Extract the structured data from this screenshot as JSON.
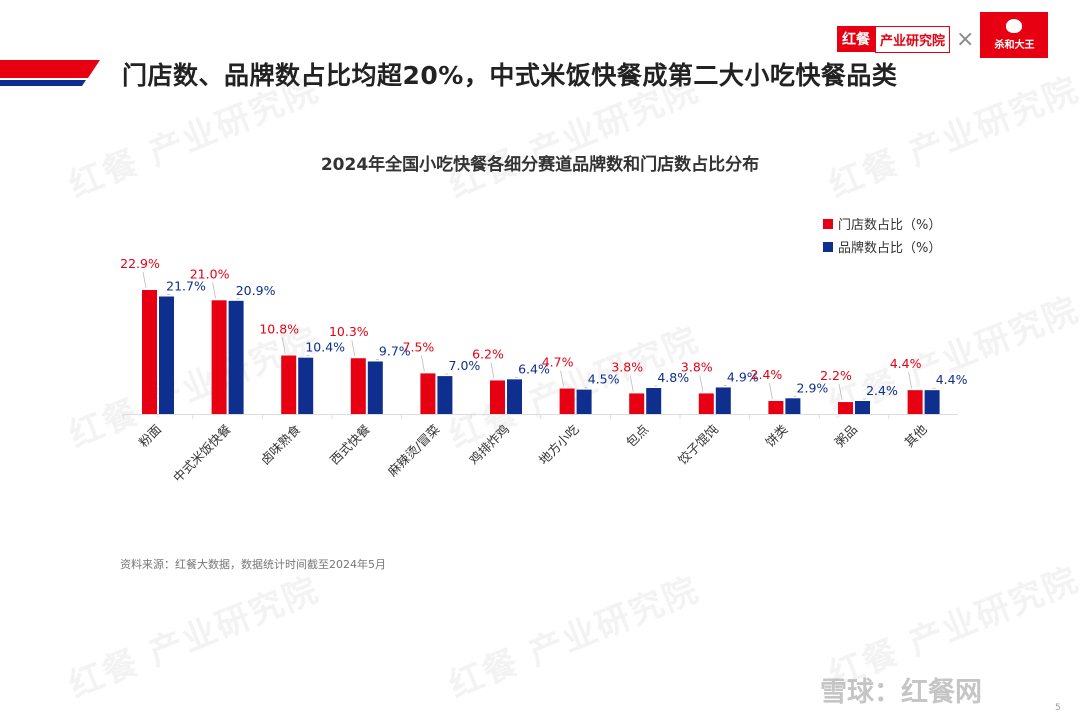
{
  "header": {
    "title": "门店数、品牌数占比均超20%，中式米饭快餐成第二大小吃快餐品类",
    "logo_left_a": "红餐",
    "logo_left_b": "产业研究院",
    "logo_times": "×",
    "logo_right": "杀和大王"
  },
  "watermark": "红餐 产业研究院",
  "colors": {
    "store": "#e60012",
    "brand": "#0f2f8f",
    "accent": "#e60012"
  },
  "chart_data": {
    "type": "bar",
    "title": "2024年全国小吃快餐各细分赛道品牌数和门店数占比分布",
    "categories": [
      "粉面",
      "中式米饭快餐",
      "卤味熟食",
      "西式快餐",
      "麻辣烫/冒菜",
      "鸡排炸鸡",
      "地方小吃",
      "包点",
      "饺子馄饨",
      "饼类",
      "粥品",
      "其他"
    ],
    "series": [
      {
        "name": "门店数占比（%）",
        "values": [
          22.9,
          21.0,
          10.8,
          10.3,
          7.5,
          6.2,
          4.7,
          3.8,
          3.8,
          2.4,
          2.2,
          4.4
        ]
      },
      {
        "name": "品牌数占比（%）",
        "values": [
          21.7,
          20.9,
          10.4,
          9.7,
          7.0,
          6.4,
          4.5,
          4.8,
          4.9,
          2.9,
          2.4,
          4.4
        ]
      }
    ],
    "ylim": [
      0,
      25
    ],
    "grid": false,
    "legend": "top-right",
    "value_suffix": "%"
  },
  "footer": {
    "source": "资料来源：红餐大数据，数据统计时间截至2024年5月",
    "xueqiu": "雪球：红餐网",
    "page": "5"
  }
}
